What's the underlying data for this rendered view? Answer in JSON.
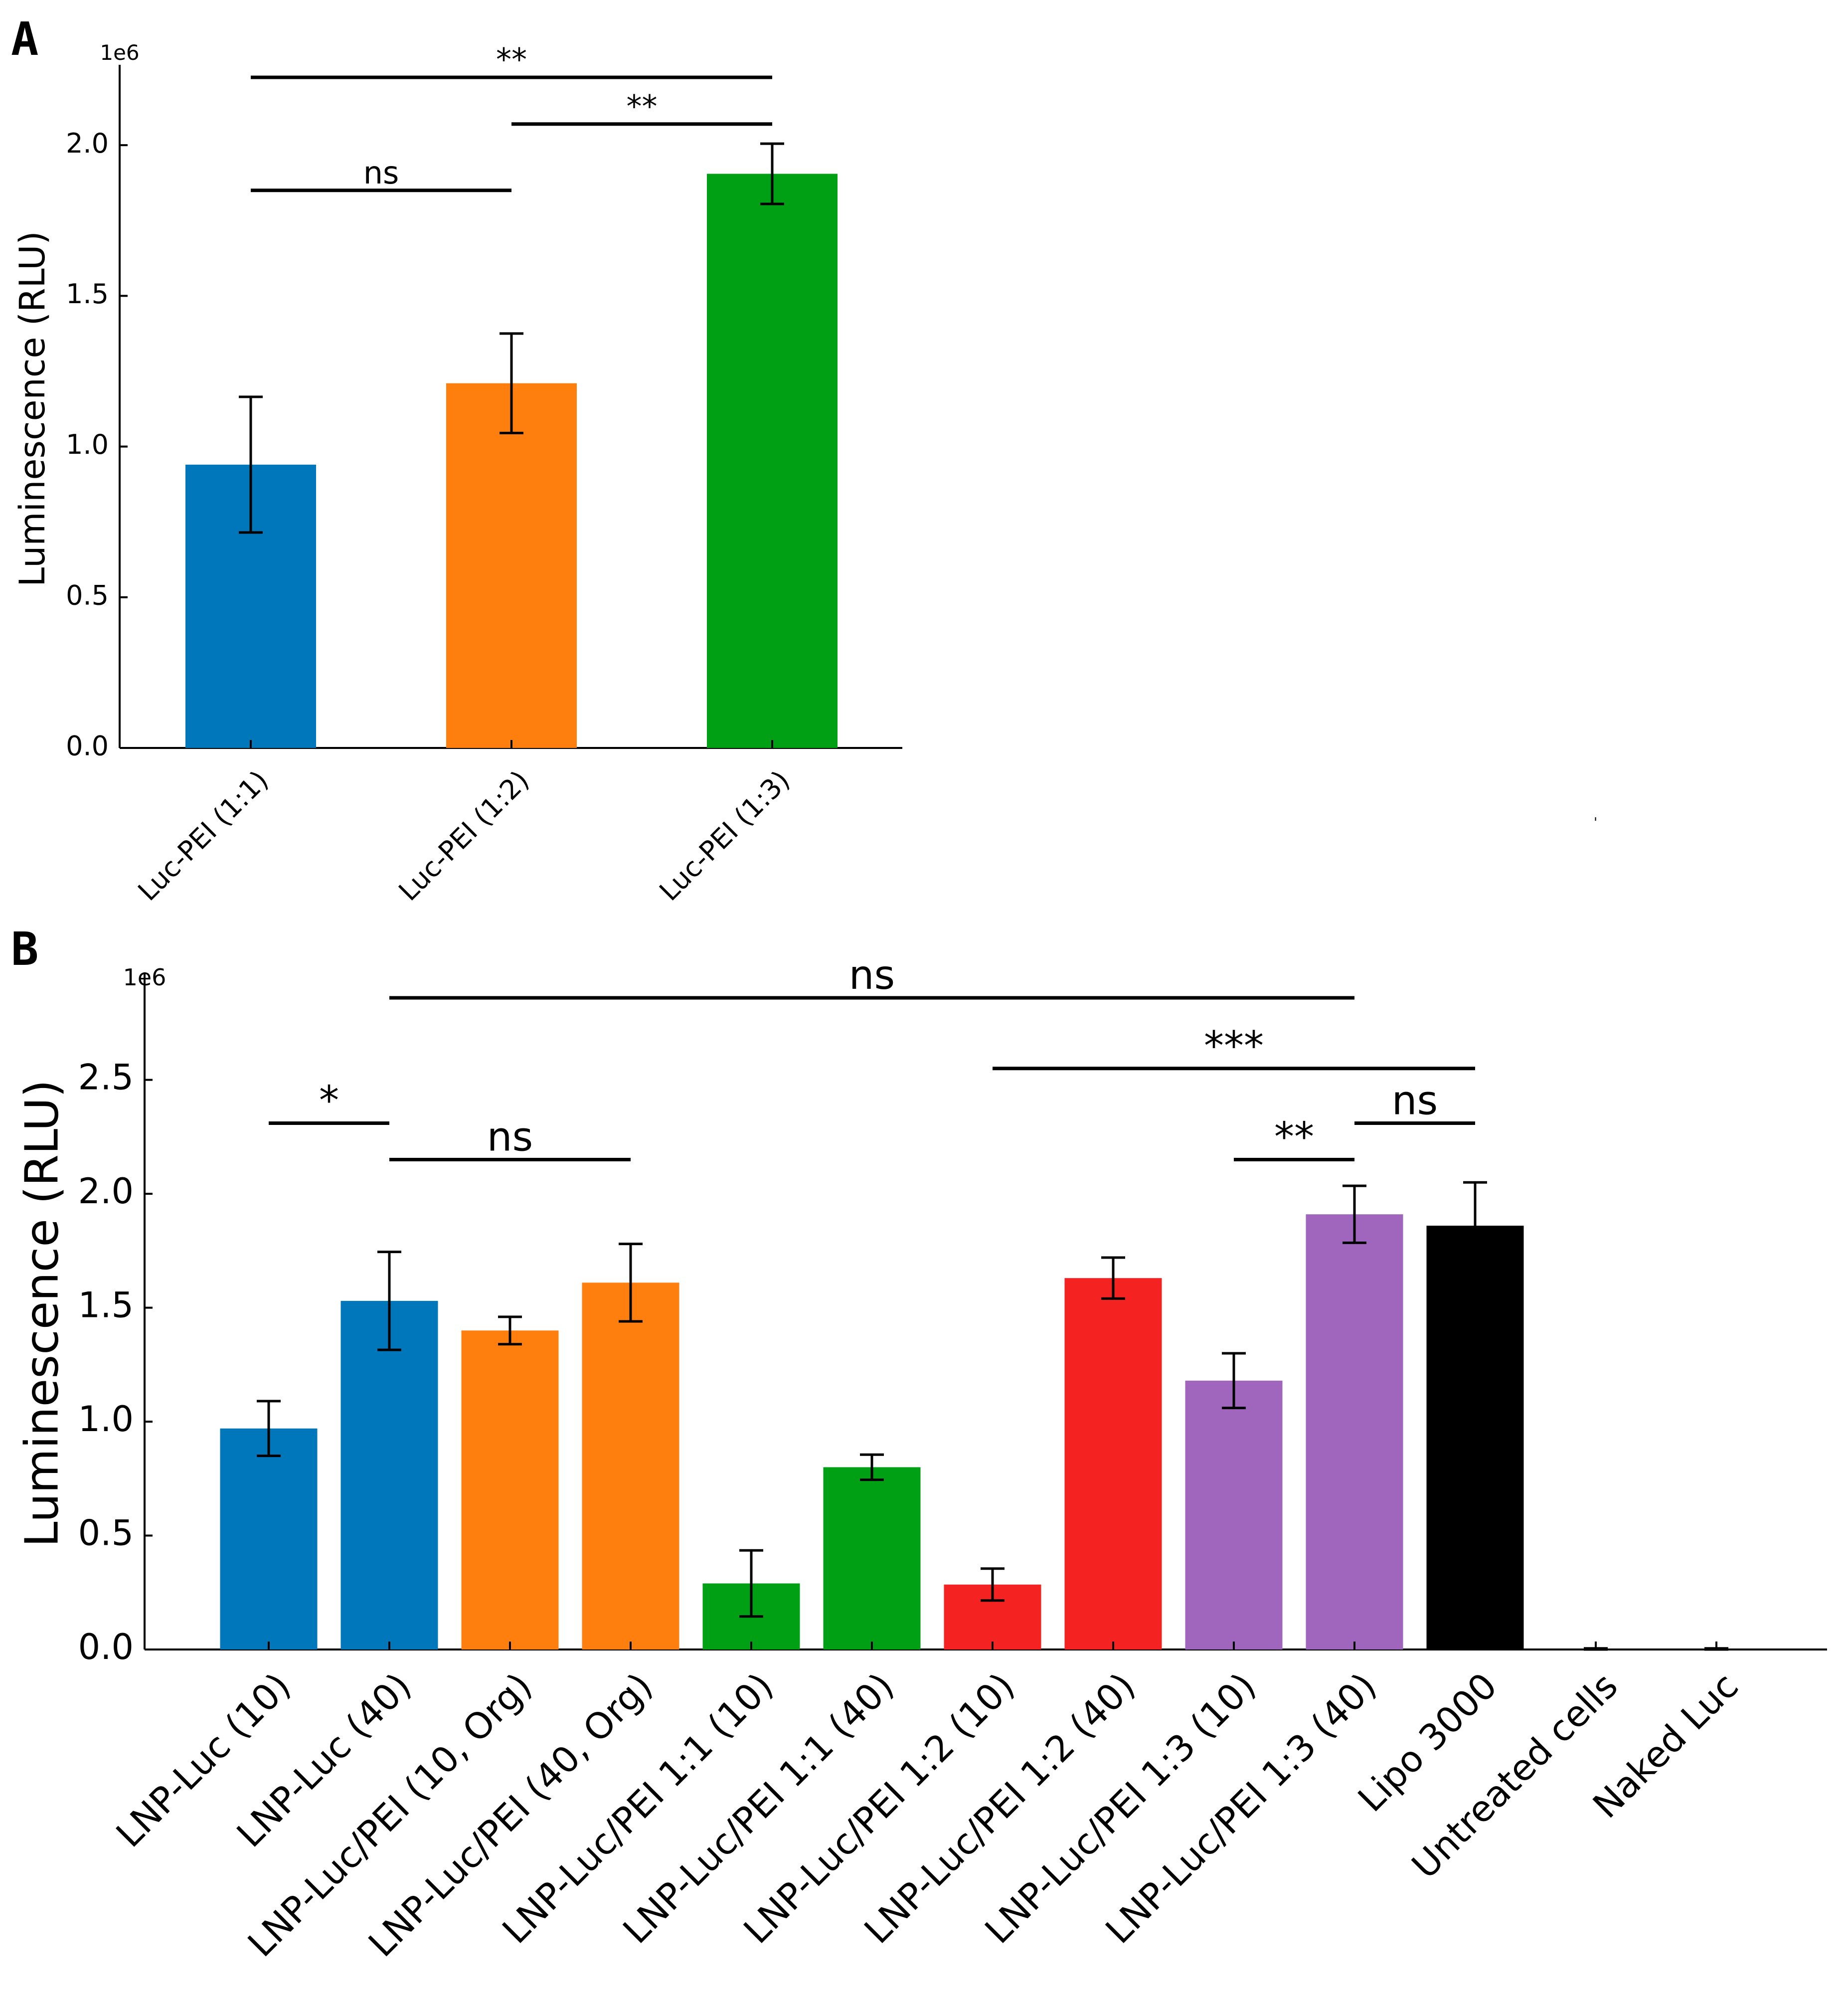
{
  "chart_data": [
    {
      "panel": "A",
      "type": "bar",
      "title": "",
      "xlabel": "",
      "ylabel": "Luminescence (RLU)",
      "axis_multiplier": "1e6",
      "ylim": [
        0,
        2.25
      ],
      "yticks": [
        0.0,
        0.5,
        1.0,
        1.5,
        2.0
      ],
      "ytick_labels": [
        "0.0",
        "0.5",
        "1.0",
        "1.5",
        "2.0"
      ],
      "grid": false,
      "categories": [
        "Luc-PEI (1:1)",
        "Luc-PEI (1:2)",
        "Luc-PEI (1:3)"
      ],
      "values": [
        0.94,
        1.21,
        1.905
      ],
      "errors": [
        0.225,
        0.165,
        0.1
      ],
      "colors": [
        "#0077BB",
        "#FF7F0E",
        "#00A014"
      ],
      "significance": [
        {
          "from": 0,
          "to": 1,
          "label": "ns",
          "level": 1.85
        },
        {
          "from": 1,
          "to": 2,
          "label": "**",
          "level": 2.07
        },
        {
          "from": 0,
          "to": 2,
          "label": "**",
          "level": 2.225
        }
      ]
    },
    {
      "panel": "B",
      "type": "bar",
      "title": "",
      "xlabel": "",
      "ylabel": "Luminescence (RLU)",
      "axis_multiplier": "1e6",
      "ylim": [
        0,
        2.95
      ],
      "yticks": [
        0.0,
        0.5,
        1.0,
        1.5,
        2.0,
        2.5
      ],
      "ytick_labels": [
        "0.0",
        "0.5",
        "1.0",
        "1.5",
        "2.0",
        "2.5"
      ],
      "grid": false,
      "categories": [
        "LNP-Luc (10)",
        "LNP-Luc (40)",
        "LNP-Luc/PEI (10, Org)",
        "LNP-Luc/PEI (40, Org)",
        "LNP-Luc/PEI 1:1 (10)",
        "LNP-Luc/PEI 1:1 (40)",
        "LNP-Luc/PEI 1:2 (10)",
        "LNP-Luc/PEI 1:2 (40)",
        "LNP-Luc/PEI 1:3 (10)",
        "LNP-Luc/PEI 1:3 (40)",
        "Lipo 3000",
        "Untreated cells",
        "Naked Luc"
      ],
      "values": [
        0.97,
        1.53,
        1.4,
        1.61,
        0.29,
        0.8,
        0.285,
        1.63,
        1.18,
        1.91,
        1.86,
        0.0,
        0.0
      ],
      "errors": [
        0.12,
        0.215,
        0.06,
        0.17,
        0.145,
        0.055,
        0.07,
        0.09,
        0.12,
        0.125,
        0.19,
        0.005,
        0.005
      ],
      "colors": [
        "#0077BB",
        "#0077BB",
        "#FF7F0E",
        "#FF7F0E",
        "#00A014",
        "#00A014",
        "#F52222",
        "#F52222",
        "#A066BE",
        "#A066BE",
        "#000000",
        "#000000",
        "#000000"
      ],
      "significance": [
        {
          "from": 0,
          "to": 1,
          "label": "*",
          "level": 2.31
        },
        {
          "from": 1,
          "to": 3,
          "label": "ns",
          "level": 2.15
        },
        {
          "from": 1,
          "to": 9,
          "label": "ns",
          "level": 2.86
        },
        {
          "from": 6,
          "to": 10,
          "label": "***",
          "level": 2.55
        },
        {
          "from": 8,
          "to": 9,
          "label": "**",
          "level": 2.15
        },
        {
          "from": 9,
          "to": 10,
          "label": "ns",
          "level": 2.31
        }
      ]
    }
  ],
  "stray_mark": "'"
}
